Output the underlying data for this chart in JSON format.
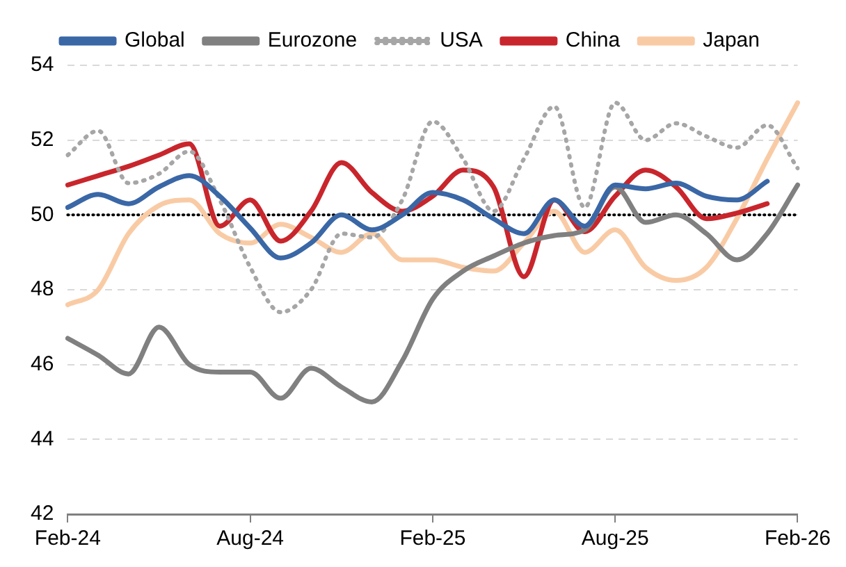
{
  "chart_data": {
    "type": "line",
    "categories": [
      "Feb-24",
      null,
      null,
      null,
      null,
      null,
      "Aug-24",
      null,
      null,
      null,
      null,
      null,
      "Feb-25",
      null,
      null,
      null,
      null,
      null,
      "Aug-25",
      null,
      null,
      null,
      null,
      null,
      "Feb-26"
    ],
    "ylim": [
      42,
      54
    ],
    "yticks": [
      42,
      44,
      46,
      48,
      50,
      52,
      54
    ],
    "grid": "y",
    "legend": "top",
    "marker": "none",
    "ref_lines": [
      {
        "axis": "y",
        "value": 50,
        "color": "#000000",
        "line_style": "dotted"
      }
    ],
    "series": [
      {
        "name": "Global",
        "color": "#3a67a6",
        "values": [
          50.2,
          50.55,
          50.3,
          50.75,
          51.05,
          50.5,
          49.65,
          48.85,
          49.25,
          50.0,
          49.6,
          50.0,
          50.6,
          50.4,
          49.9,
          49.5,
          50.4,
          49.7,
          50.8,
          50.7,
          50.85,
          50.5,
          50.4,
          50.9,
          null
        ]
      },
      {
        "name": "Eurozone",
        "color": "#808080",
        "values": [
          46.7,
          46.25,
          45.75,
          47.0,
          46.0,
          45.8,
          45.8,
          45.1,
          45.9,
          45.4,
          45.0,
          46.1,
          47.75,
          48.5,
          48.9,
          49.25,
          49.45,
          49.6,
          50.75,
          49.8,
          50.0,
          49.5,
          48.8,
          49.5,
          50.8
        ]
      },
      {
        "name": "USA",
        "color": "#a6a6a6",
        "line_style": "dotted",
        "values": [
          51.6,
          52.25,
          50.85,
          51.1,
          51.7,
          50.4,
          48.6,
          47.4,
          48.0,
          49.5,
          49.4,
          50.4,
          52.5,
          51.5,
          50.1,
          51.5,
          52.9,
          50.2,
          53.0,
          52.0,
          52.45,
          52.1,
          51.8,
          52.4,
          51.25
        ]
      },
      {
        "name": "China",
        "color": "#c8262c",
        "values": [
          50.8,
          51.05,
          51.3,
          51.6,
          51.9,
          49.7,
          50.4,
          49.3,
          50.1,
          51.4,
          50.6,
          50.1,
          50.5,
          51.2,
          50.75,
          48.35,
          50.4,
          49.55,
          50.5,
          51.2,
          50.75,
          49.9,
          50.05,
          50.3,
          null
        ]
      },
      {
        "name": "Japan",
        "color": "#f9cba5",
        "values": [
          47.6,
          48.0,
          49.5,
          50.25,
          50.4,
          49.5,
          49.25,
          49.75,
          49.4,
          49.0,
          49.5,
          48.8,
          48.8,
          48.6,
          48.5,
          49.25,
          50.1,
          49.0,
          49.6,
          48.6,
          48.25,
          48.6,
          49.9,
          51.5,
          53.0
        ]
      }
    ]
  }
}
